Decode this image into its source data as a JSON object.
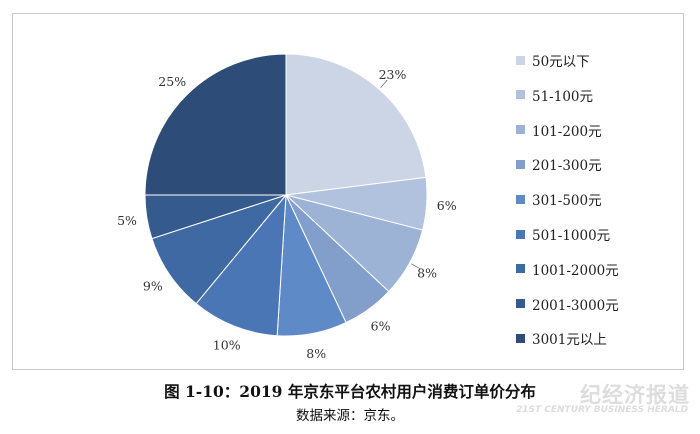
{
  "chart_data": {
    "type": "pie",
    "categories": [
      "50元以下",
      "51-100元",
      "101-200元",
      "201-300元",
      "301-500元",
      "501-1000元",
      "1001-2000元",
      "2001-3000元",
      "3001元以上"
    ],
    "values": [
      23,
      6,
      8,
      6,
      8,
      10,
      9,
      5,
      25
    ],
    "value_labels": [
      "23%",
      "6%",
      "8%",
      "6%",
      "8%",
      "10%",
      "9%",
      "5%",
      "25%"
    ],
    "colors": [
      "#cbd5e6",
      "#b0c2de",
      "#9db3d6",
      "#829fcc",
      "#5e8ac7",
      "#4a76b6",
      "#3f69a3",
      "#355a8d",
      "#2e4c78"
    ],
    "legend_position": "right",
    "start_angle": "12 o'clock, clockwise"
  },
  "caption": {
    "title": "图 1-10：2019 年京东平台农村用户消费订单价分布",
    "source": "数据来源：京东。"
  },
  "watermark": {
    "text_cn": "纪经济报道",
    "text_en": "21ST CENTURY BUSINESS HERALD"
  }
}
